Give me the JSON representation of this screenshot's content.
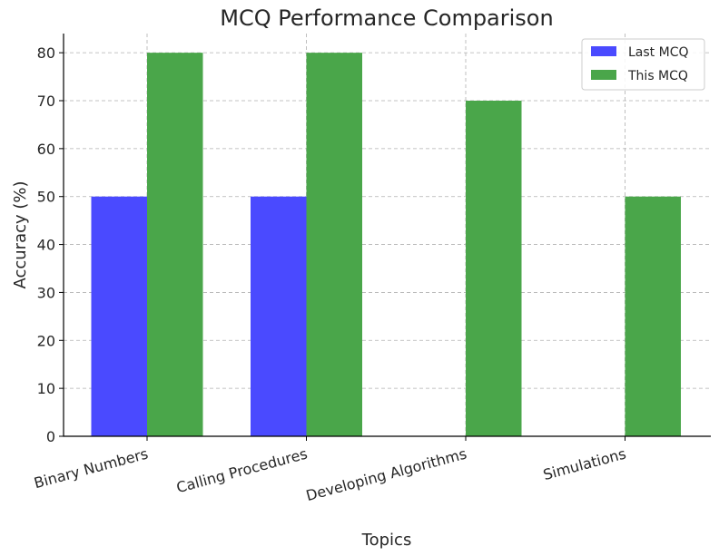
{
  "chart_data": {
    "type": "bar",
    "title": "MCQ Performance Comparison",
    "xlabel": "Topics",
    "ylabel": "Accuracy (%)",
    "categories": [
      "Binary Numbers",
      "Calling Procedures",
      "Developing Algorithms",
      "Simulations"
    ],
    "series": [
      {
        "name": "Last MCQ",
        "values": [
          50,
          50,
          0,
          0
        ],
        "color": "#4a4aff"
      },
      {
        "name": "This MCQ",
        "values": [
          80,
          80,
          70,
          50
        ],
        "color": "#4aa64a"
      }
    ],
    "ylim": [
      0,
      84
    ],
    "yticks": [
      0,
      10,
      20,
      30,
      40,
      50,
      60,
      70,
      80
    ],
    "grid": true,
    "legend_position": "top-right"
  }
}
